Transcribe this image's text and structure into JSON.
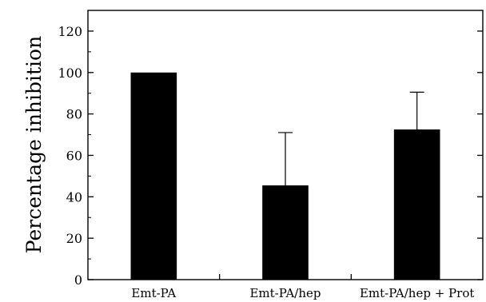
{
  "chart_data": {
    "type": "bar",
    "categories": [
      "Emt-PA",
      "Emt-PA/hep",
      "Emt-PA/hep + Prot"
    ],
    "values": [
      100,
      45.5,
      72.5
    ],
    "error_upper": [
      0,
      25.5,
      18.0
    ],
    "ylabel": "Percentage inhibition",
    "xlabel": "",
    "ylim": [
      0,
      130
    ],
    "yticks": [
      0,
      20,
      40,
      60,
      80,
      100,
      120
    ],
    "grid": false,
    "bar_color": "#000000"
  }
}
